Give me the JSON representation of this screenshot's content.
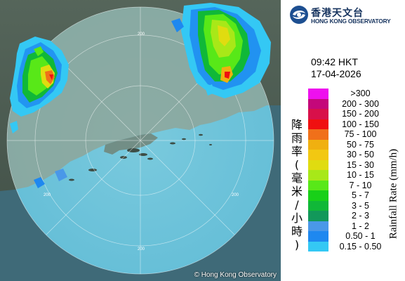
{
  "map": {
    "copyright": "© Hong Kong Observatory",
    "range_labels": [
      "200",
      "200",
      "200",
      "200"
    ]
  },
  "logo": {
    "name_zh": "香港天文台",
    "name_en": "HONG KONG OBSERVATORY"
  },
  "observation": {
    "time": "09:42 HKT",
    "date": "17-04-2026"
  },
  "legend": {
    "title_zh": "降雨率(毫米/小時)",
    "title_en": "Rainfall Rate (mm/h)",
    "items": [
      {
        "label": ">300",
        "color": "#ee10ee"
      },
      {
        "label": "200 - 300",
        "color": "#c4087a"
      },
      {
        "label": "150 - 200",
        "color": "#d8104a"
      },
      {
        "label": "100 - 150",
        "color": "#f01010"
      },
      {
        "label": "75 - 100",
        "color": "#f0701a"
      },
      {
        "label": "50 - 75",
        "color": "#f0b010"
      },
      {
        "label": "30 - 50",
        "color": "#f2c812"
      },
      {
        "label": "15 - 30",
        "color": "#e0dc10"
      },
      {
        "label": "10 - 15",
        "color": "#a8e818"
      },
      {
        "label": "7 - 10",
        "color": "#58e818"
      },
      {
        "label": "5 - 7",
        "color": "#18d018"
      },
      {
        "label": "3 - 5",
        "color": "#10b838"
      },
      {
        "label": "2 - 3",
        "color": "#12985a"
      },
      {
        "label": "1 - 2",
        "color": "#4a98e8"
      },
      {
        "label": "0.50 - 1",
        "color": "#1e88f0"
      },
      {
        "label": "0.15 - 0.50",
        "color": "#34c8f4"
      }
    ]
  }
}
